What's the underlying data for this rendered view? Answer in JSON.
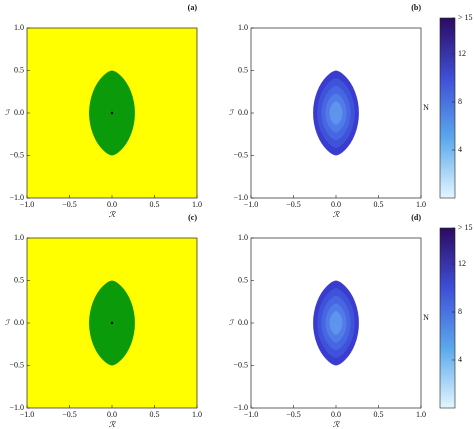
{
  "chart_data": [
    {
      "type": "region",
      "label": "(a)",
      "xlabel": "ℛ",
      "ylabel": "ℐ",
      "xlim": [
        -1,
        1
      ],
      "ylim": [
        -1,
        1
      ],
      "xticks": [
        {
          "value": -1,
          "label": "−1.0"
        },
        {
          "value": -0.5,
          "label": "−0.5"
        },
        {
          "value": 0,
          "label": "0.0"
        },
        {
          "value": 0.5,
          "label": "0.5"
        },
        {
          "value": 1,
          "label": "1.0"
        }
      ],
      "yticks": [
        {
          "value": -1,
          "label": "−1.0"
        },
        {
          "value": -0.5,
          "label": "−0.5"
        },
        {
          "value": 0,
          "label": "0.0"
        },
        {
          "value": 0.5,
          "label": "0.5"
        },
        {
          "value": 1,
          "label": "1.0"
        }
      ],
      "colors": [
        "#ffff00",
        "#0a9a0a"
      ]
    },
    {
      "type": "contour",
      "label": "(b)",
      "xlabel": "ℛ",
      "ylabel": "ℐ",
      "xlim": [
        -1,
        1
      ],
      "ylim": [
        -1,
        1
      ],
      "xticks": [
        {
          "value": -1,
          "label": "−1.0"
        },
        {
          "value": -0.5,
          "label": "−0.5"
        },
        {
          "value": 0,
          "label": "0.0"
        },
        {
          "value": 0.5,
          "label": "0.5"
        },
        {
          "value": 1,
          "label": "1.0"
        }
      ],
      "yticks": [
        {
          "value": -1,
          "label": "−1.0"
        },
        {
          "value": -0.5,
          "label": "−0.5"
        },
        {
          "value": 0,
          "label": "0.0"
        },
        {
          "value": 0.5,
          "label": "0.5"
        },
        {
          "value": 1,
          "label": "1.0"
        }
      ],
      "colors": [
        "#3a3ccf",
        "#3f52da",
        "#4766e2",
        "#517ce8",
        "#5e93ee"
      ],
      "colorbar": {
        "label": "N",
        "zlim": [
          0,
          15
        ],
        "ticks": [
          4,
          8,
          12,
          {
            "value": 15,
            "label": "> 15"
          }
        ],
        "cmap": [
          "#e4f6ff",
          "#5aa8ec",
          "#3f4fd6",
          "#2c0b62"
        ]
      }
    },
    {
      "type": "region",
      "label": "(c)",
      "xlabel": "ℛ",
      "ylabel": "ℐ",
      "xlim": [
        -1,
        1
      ],
      "ylim": [
        -1,
        1
      ],
      "xticks": [
        {
          "value": -1,
          "label": "−1.0"
        },
        {
          "value": -0.5,
          "label": "−0.5"
        },
        {
          "value": 0,
          "label": "0.0"
        },
        {
          "value": 0.5,
          "label": "0.5"
        },
        {
          "value": 1,
          "label": "1.0"
        }
      ],
      "yticks": [
        {
          "value": -1,
          "label": "−1.0"
        },
        {
          "value": -0.5,
          "label": "−0.5"
        },
        {
          "value": 0,
          "label": "0.0"
        },
        {
          "value": 0.5,
          "label": "0.5"
        },
        {
          "value": 1,
          "label": "1.0"
        }
      ],
      "colors": [
        "#ffff00",
        "#0a9a0a"
      ]
    },
    {
      "type": "contour",
      "label": "(d)",
      "xlabel": "ℛ",
      "ylabel": "ℐ",
      "xlim": [
        -1,
        1
      ],
      "ylim": [
        -1,
        1
      ],
      "xticks": [
        {
          "value": -1,
          "label": "−1.0"
        },
        {
          "value": -0.5,
          "label": "−0.5"
        },
        {
          "value": 0,
          "label": "0.0"
        },
        {
          "value": 0.5,
          "label": "0.5"
        },
        {
          "value": 1,
          "label": "1.0"
        }
      ],
      "yticks": [
        {
          "value": -1,
          "label": "−1.0"
        },
        {
          "value": -0.5,
          "label": "−0.5"
        },
        {
          "value": 0,
          "label": "0.0"
        },
        {
          "value": 0.5,
          "label": "0.5"
        },
        {
          "value": 1,
          "label": "1.0"
        }
      ],
      "colors": [
        "#3a3ccf",
        "#3f52da",
        "#4766e2",
        "#517ce8",
        "#5e93ee"
      ],
      "colorbar": {
        "label": "N",
        "zlim": [
          0,
          15
        ],
        "ticks": [
          4,
          8,
          12,
          {
            "value": 15,
            "label": "> 15"
          }
        ],
        "cmap": [
          "#e4f6ff",
          "#5aa8ec",
          "#3f4fd6",
          "#2c0b62"
        ]
      }
    }
  ]
}
